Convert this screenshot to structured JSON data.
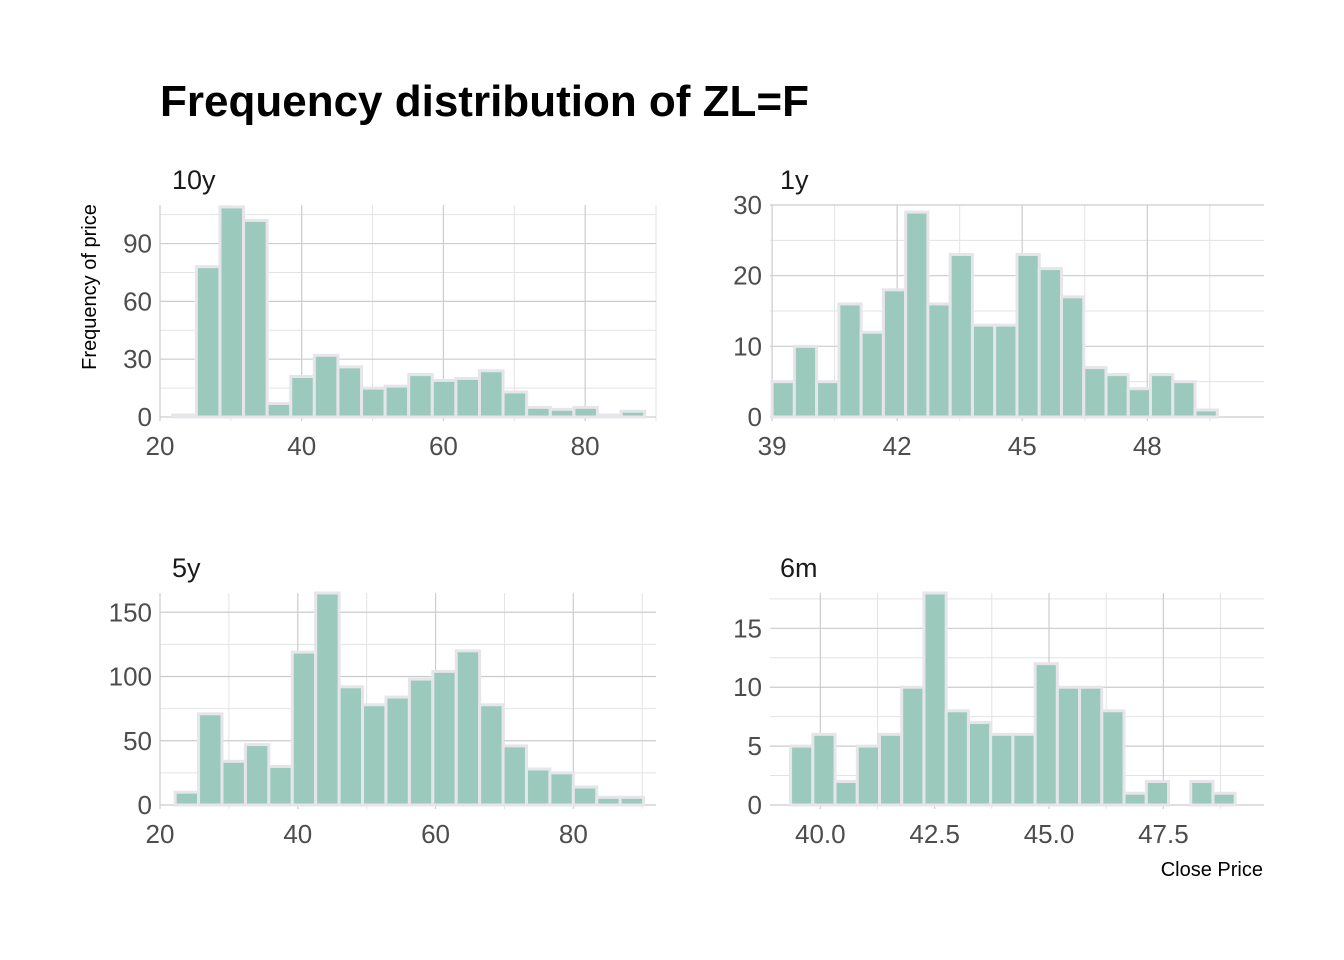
{
  "title": "Frequency distribution of ZL=F",
  "ylabel": "Frequency of price",
  "xlabel": "Close Price",
  "colors": {
    "bar_fill": "#9bc9bc",
    "bar_stroke": "#e6e6ea",
    "grid": "#cccccc",
    "text": "#4d4d4d"
  },
  "chart_data": [
    {
      "type": "bar",
      "panel": "10y",
      "xlim": [
        20,
        90
      ],
      "ylim": [
        0,
        110
      ],
      "xticks": [
        20,
        40,
        60,
        80
      ],
      "yticks": [
        0,
        30,
        60,
        90
      ],
      "bin_width": 3.33,
      "bin_start": 21.8,
      "values": [
        1,
        78,
        109,
        102,
        7,
        21,
        32,
        26,
        15,
        16,
        22,
        19,
        20,
        24,
        13,
        5,
        4,
        5,
        1,
        3
      ]
    },
    {
      "type": "bar",
      "panel": "1y",
      "xlim": [
        38.95,
        50.8
      ],
      "ylim": [
        0,
        30
      ],
      "xticks": [
        39,
        42,
        45,
        48
      ],
      "yticks": [
        0,
        10,
        20,
        30
      ],
      "bin_width": 0.534,
      "bin_start": 39,
      "values": [
        5,
        10,
        5,
        16,
        12,
        18,
        29,
        16,
        23,
        13,
        13,
        23,
        21,
        17,
        7,
        6,
        4,
        6,
        5,
        1
      ]
    },
    {
      "type": "bar",
      "panel": "5y",
      "xlim": [
        20,
        92
      ],
      "ylim": [
        0,
        165
      ],
      "xticks": [
        20,
        40,
        60,
        80
      ],
      "yticks": [
        0,
        50,
        100,
        150
      ],
      "bin_width": 3.4,
      "bin_start": 22.2,
      "values": [
        10,
        71,
        34,
        47,
        30,
        119,
        165,
        92,
        78,
        84,
        98,
        104,
        120,
        78,
        46,
        28,
        25,
        14,
        6,
        6
      ]
    },
    {
      "type": "bar",
      "panel": "6m",
      "xlim": [
        38.9,
        49.7
      ],
      "ylim": [
        0,
        18
      ],
      "xticks": [
        40.0,
        42.5,
        45.0,
        47.5
      ],
      "yticks": [
        0,
        5,
        10,
        15
      ],
      "bin_width": 0.486,
      "bin_start": 39.35,
      "values": [
        5,
        6,
        2,
        5,
        6,
        10,
        18,
        8,
        7,
        6,
        6,
        12,
        10,
        10,
        8,
        1,
        2,
        0,
        2,
        1
      ]
    }
  ]
}
